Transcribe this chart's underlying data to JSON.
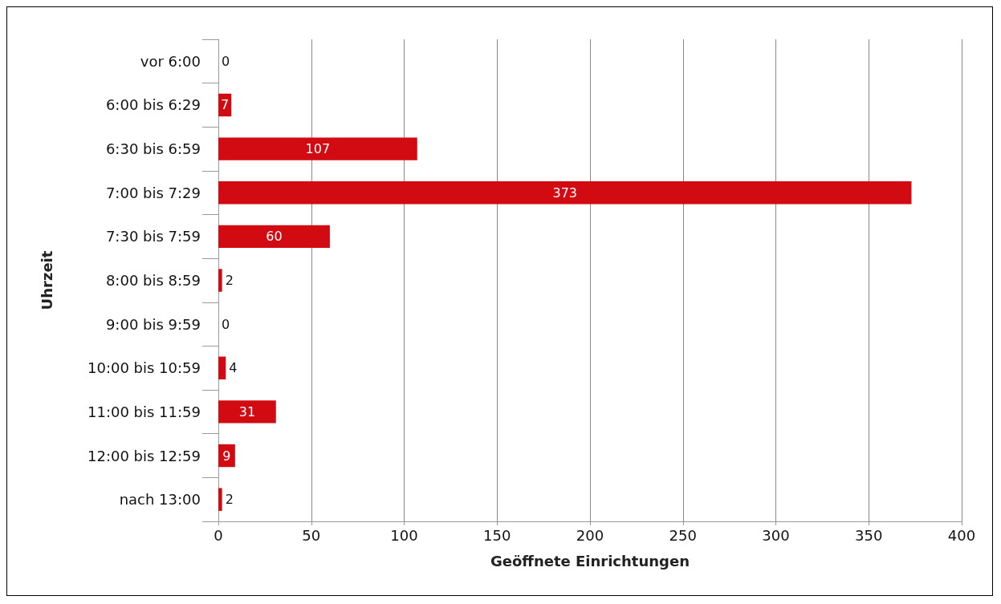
{
  "chart_data": {
    "type": "bar",
    "orientation": "horizontal",
    "xlabel": "Geöffnete Einrichtungen",
    "ylabel": "Uhrzeit",
    "categories": [
      "vor 6:00",
      "6:00 bis 6:29",
      "6:30 bis 6:59",
      "7:00 bis 7:29",
      "7:30 bis 7:59",
      "8:00 bis 8:59",
      "9:00 bis 9:59",
      "10:00 bis 10:59",
      "11:00 bis 11:59",
      "12:00 bis 12:59",
      "nach 13:00"
    ],
    "values": [
      0,
      7,
      107,
      373,
      60,
      2,
      0,
      4,
      31,
      9,
      2
    ],
    "color": "#d20a11",
    "xlim": [
      0,
      400
    ],
    "xticks": [
      0,
      50,
      100,
      150,
      200,
      250,
      300,
      350,
      400
    ],
    "grid": "x",
    "data_labels": true
  }
}
